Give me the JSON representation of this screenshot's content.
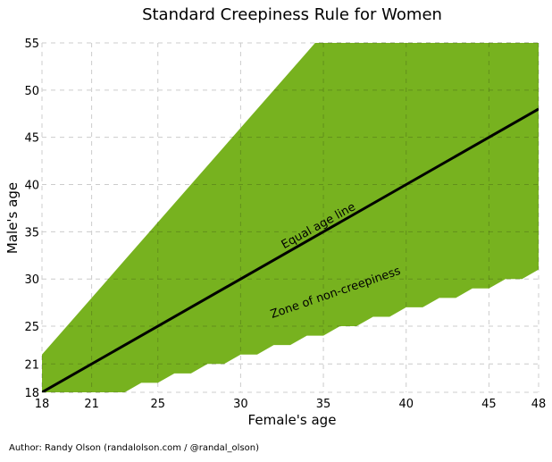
{
  "chart_data": {
    "type": "area",
    "title": "Standard Creepiness Rule for Women",
    "xlabel": "Female's age",
    "ylabel": "Male's age",
    "xlim": [
      18,
      48
    ],
    "ylim": [
      18,
      55
    ],
    "xticks": [
      18,
      21,
      25,
      30,
      35,
      40,
      45,
      48
    ],
    "yticks": [
      18,
      21,
      25,
      30,
      35,
      40,
      45,
      50,
      55
    ],
    "grid": true,
    "fill_color": "#77b21f",
    "line_color": "#000000",
    "x": [
      18,
      19,
      20,
      21,
      22,
      23,
      24,
      25,
      26,
      27,
      28,
      29,
      30,
      31,
      32,
      33,
      34,
      35,
      36,
      37,
      38,
      39,
      40,
      41,
      42,
      43,
      44,
      45,
      46,
      47,
      48
    ],
    "lower": [
      16,
      16,
      17,
      17,
      18,
      18,
      19,
      19,
      20,
      20,
      21,
      21,
      22,
      22,
      23,
      23,
      24,
      24,
      25,
      25,
      26,
      26,
      27,
      27,
      28,
      28,
      29,
      29,
      30,
      30,
      31
    ],
    "upper": [
      22,
      24,
      26,
      28,
      30,
      32,
      34,
      36,
      38,
      40,
      42,
      44,
      46,
      48,
      50,
      52,
      54,
      56,
      58,
      60,
      62,
      64,
      66,
      68,
      70,
      72,
      74,
      76,
      78,
      80,
      82
    ],
    "equal_line": {
      "x": [
        18,
        48
      ],
      "y": [
        18,
        48
      ]
    },
    "annotations": [
      {
        "text": "Equal age line",
        "x": 34.8,
        "y": 35.3,
        "angle": 29
      },
      {
        "text": "Zone of non-creepiness",
        "x": 35.8,
        "y": 28.2,
        "angle": 19
      }
    ]
  },
  "footer": {
    "credit": "Author: Randy Olson (randalolson.com / @randal_olson)"
  }
}
